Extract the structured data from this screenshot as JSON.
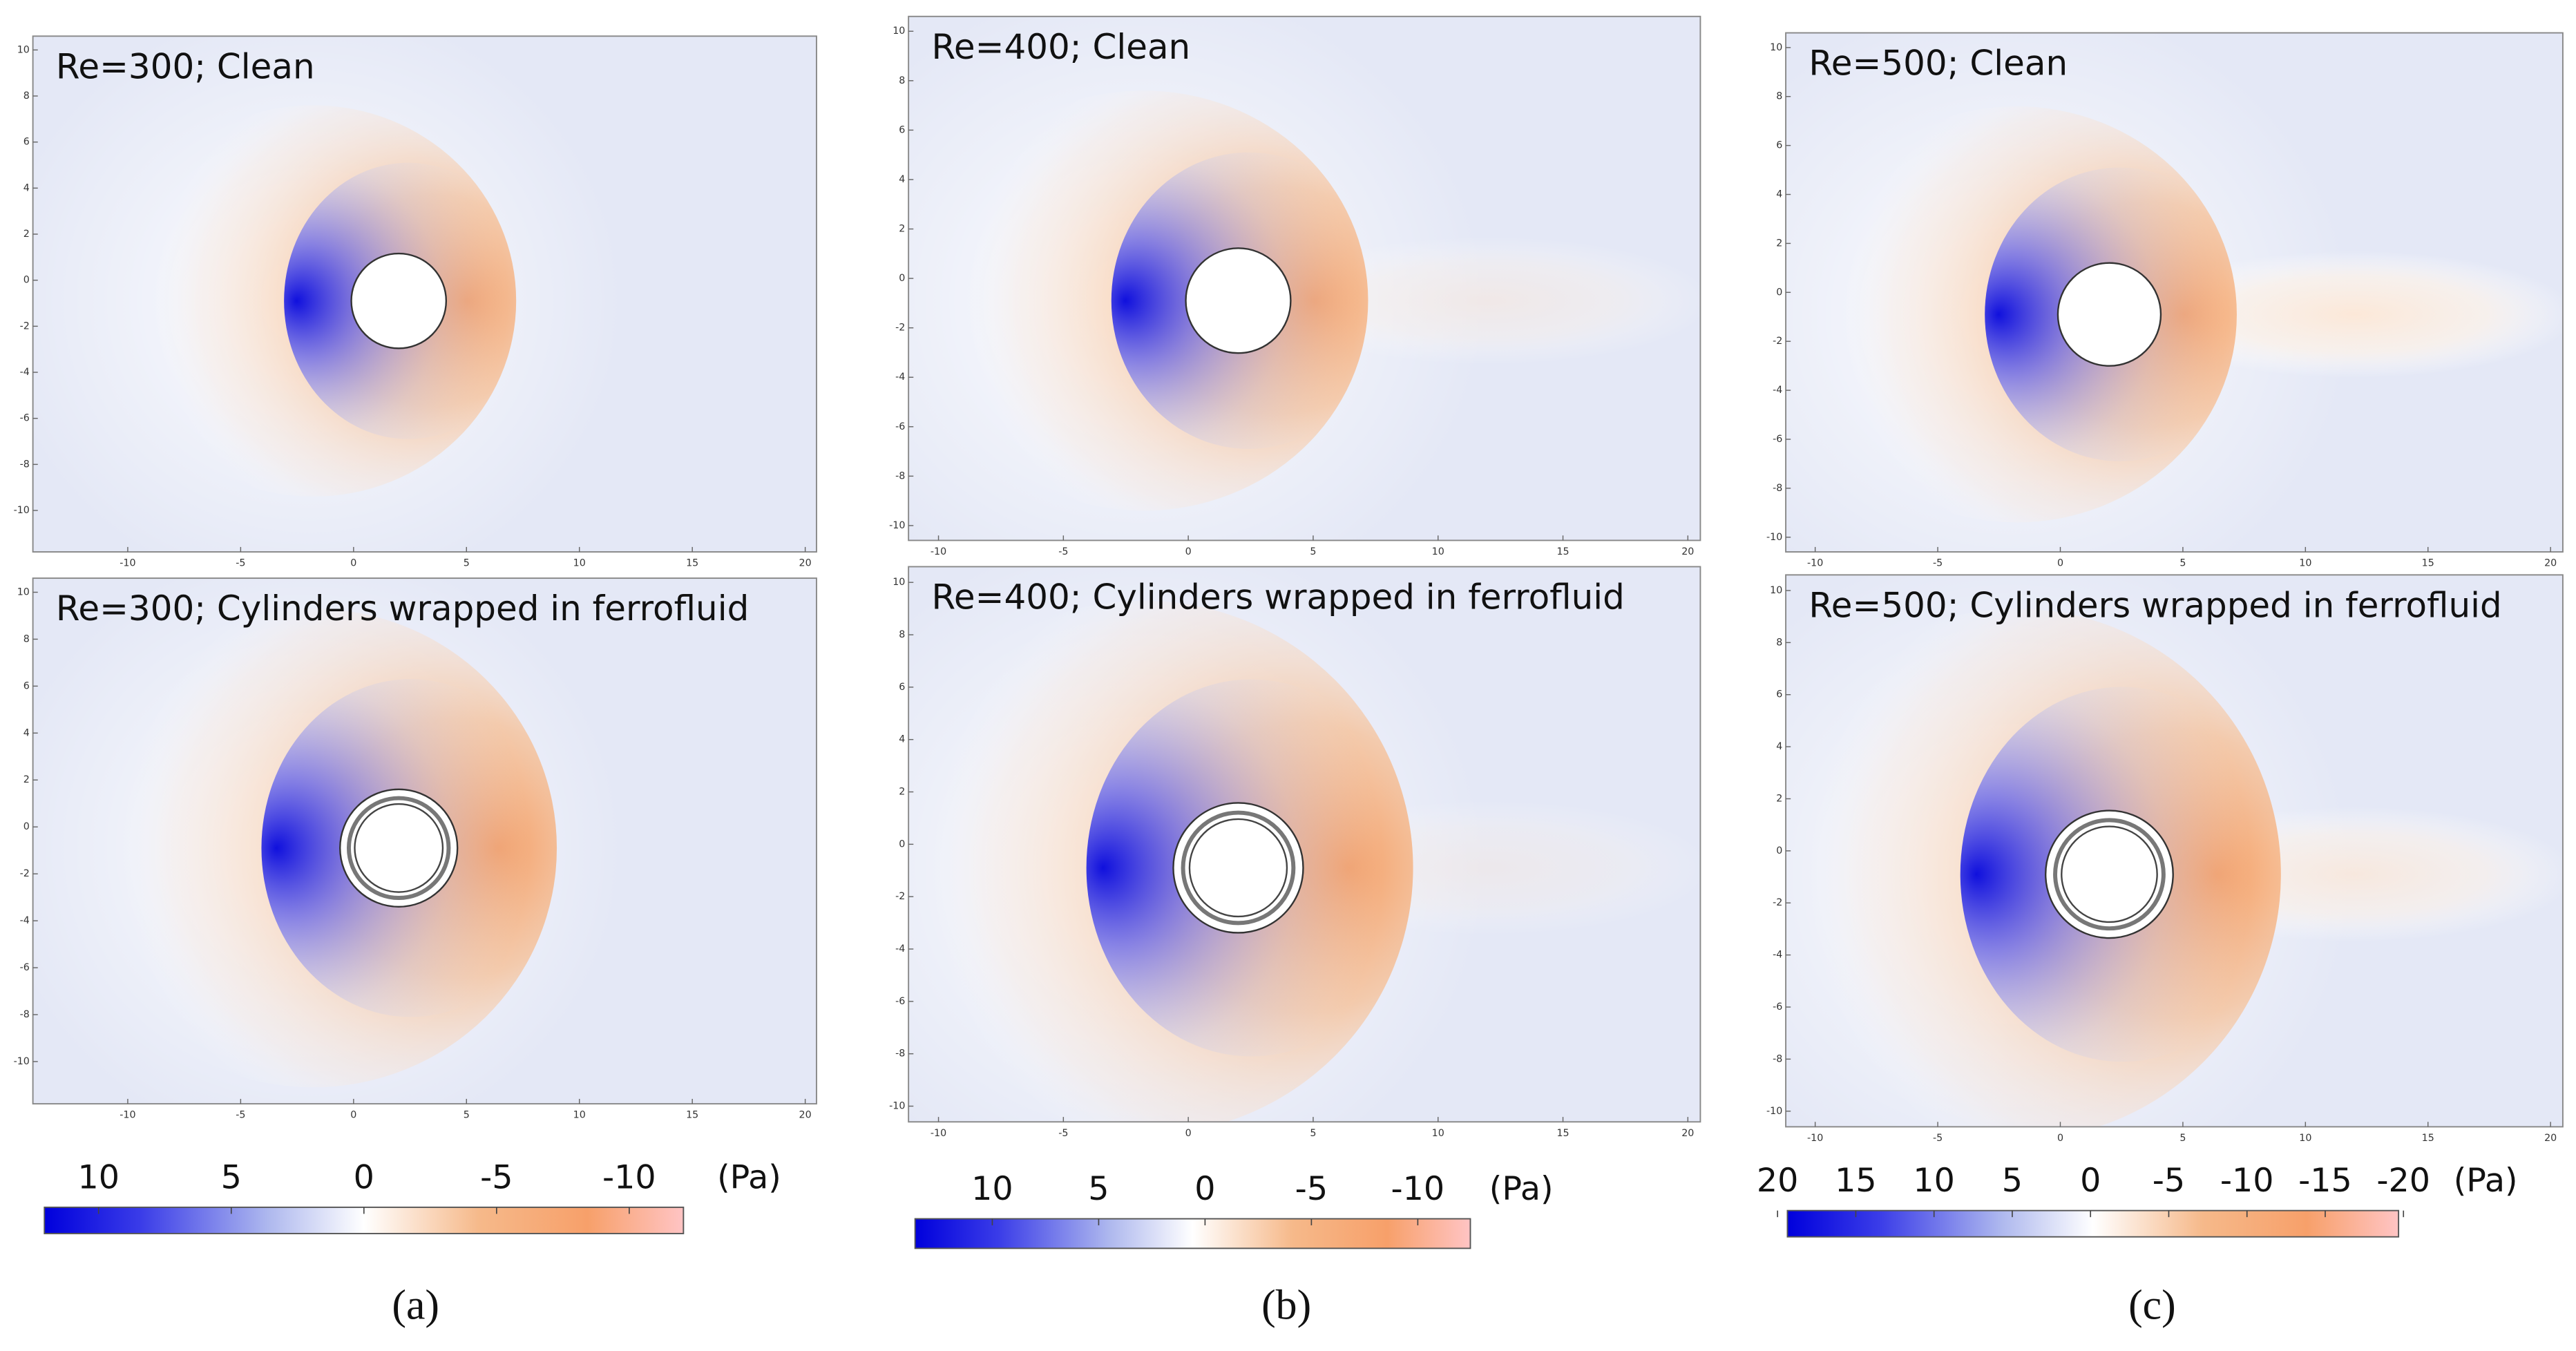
{
  "panels": [
    {
      "title": "Re=300; Clean",
      "xticks": [
        -10,
        -5,
        0,
        5,
        10,
        15,
        20
      ],
      "yticks": [
        10,
        8,
        6,
        4,
        2,
        0,
        -2,
        -4,
        -6,
        -8,
        -10
      ],
      "xlim": [
        -14.2,
        20.5
      ],
      "ylim": [
        -11.8,
        10.6
      ]
    },
    {
      "title": "Re=400; Clean",
      "xticks": [
        -10,
        -5,
        0,
        5,
        10,
        15,
        20
      ],
      "yticks": [
        10,
        8,
        6,
        4,
        2,
        0,
        -2,
        -4,
        -6,
        -8,
        -10
      ],
      "xlim": [
        -11.2,
        20.5
      ],
      "ylim": [
        -10.6,
        10.6
      ]
    },
    {
      "title": "Re=500; Clean",
      "xticks": [
        -10,
        -5,
        0,
        5,
        10,
        15,
        20
      ],
      "yticks": [
        10,
        8,
        6,
        4,
        2,
        0,
        -2,
        -4,
        -6,
        -8,
        -10
      ],
      "xlim": [
        -11.2,
        20.5
      ],
      "ylim": [
        -10.6,
        10.6
      ]
    },
    {
      "title": "Re=300; Cylinders wrapped in ferrofluid",
      "xticks": [
        -10,
        -5,
        0,
        5,
        10,
        15,
        20
      ],
      "yticks": [
        10,
        8,
        6,
        4,
        2,
        0,
        -2,
        -4,
        -6,
        -8,
        -10
      ],
      "xlim": [
        -14.2,
        20.5
      ],
      "ylim": [
        -11.8,
        10.6
      ]
    },
    {
      "title": "Re=400; Cylinders wrapped in ferrofluid",
      "xticks": [
        -10,
        -5,
        0,
        5,
        10,
        15,
        20
      ],
      "yticks": [
        10,
        8,
        6,
        4,
        2,
        0,
        -2,
        -4,
        -6,
        -8,
        -10
      ],
      "xlim": [
        -11.2,
        20.5
      ],
      "ylim": [
        -10.6,
        10.6
      ]
    },
    {
      "title": "Re=500; Cylinders wrapped in ferrofluid",
      "xticks": [
        -10,
        -5,
        0,
        5,
        10,
        15,
        20
      ],
      "yticks": [
        10,
        8,
        6,
        4,
        2,
        0,
        -2,
        -4,
        -6,
        -8,
        -10
      ],
      "xlim": [
        -11.2,
        20.5
      ],
      "ylim": [
        -10.6,
        10.6
      ]
    }
  ],
  "colorbars": [
    {
      "labels": [
        10,
        5,
        0,
        -5,
        -10
      ],
      "unit": "(Pa)",
      "caption": "(a)"
    },
    {
      "labels": [
        10,
        5,
        0,
        -5,
        -10
      ],
      "unit": "(Pa)",
      "caption": "(b)"
    },
    {
      "labels": [
        20,
        15,
        10,
        5,
        0,
        -5,
        -10,
        -15,
        -20
      ],
      "unit": "(Pa)",
      "caption": "(c)"
    }
  ]
}
